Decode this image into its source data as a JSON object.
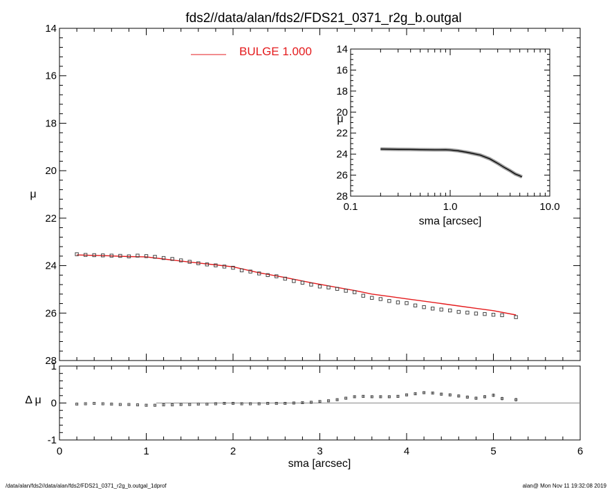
{
  "title": "fds2//data/alan/fds2/FDS21_0371_r2g_b.outgal",
  "footer_left": "/data/alan/fds2//data/alan/fds2/FDS21_0371_r2g_b.outgal_1dprof",
  "footer_right": "alan@  Mon Nov 11 19:32:08 2019",
  "colors": {
    "model": "#e41a1c",
    "data": "#444444",
    "axis": "#000000"
  },
  "chart_data": [
    {
      "type": "scatter",
      "panel": "main",
      "xlabel": "",
      "ylabel": "μ",
      "xlim": [
        0,
        6
      ],
      "ylim": [
        28,
        14
      ],
      "y_inverted": true,
      "y_ticks": [
        "14",
        "16",
        "18",
        "20",
        "22",
        "24",
        "26",
        "28"
      ],
      "legend": {
        "label": "BULGE  1.000",
        "placement": "top-center"
      },
      "data_points": {
        "x": [
          0.2,
          0.3,
          0.4,
          0.5,
          0.6,
          0.7,
          0.8,
          0.9,
          1.0,
          1.1,
          1.2,
          1.3,
          1.4,
          1.5,
          1.6,
          1.7,
          1.8,
          1.9,
          2.0,
          2.1,
          2.2,
          2.3,
          2.4,
          2.5,
          2.6,
          2.7,
          2.8,
          2.9,
          3.0,
          3.1,
          3.2,
          3.3,
          3.4,
          3.5,
          3.6,
          3.7,
          3.8,
          3.9,
          4.0,
          4.1,
          4.2,
          4.3,
          4.4,
          4.5,
          4.6,
          4.7,
          4.8,
          4.9,
          5.0,
          5.1,
          5.26
        ],
        "y": [
          23.52,
          23.55,
          23.56,
          23.57,
          23.58,
          23.59,
          23.61,
          23.58,
          23.6,
          23.63,
          23.68,
          23.72,
          23.78,
          23.84,
          23.9,
          23.95,
          23.99,
          24.04,
          24.09,
          24.2,
          24.25,
          24.33,
          24.4,
          24.45,
          24.55,
          24.65,
          24.72,
          24.8,
          24.88,
          24.92,
          24.98,
          25.06,
          25.12,
          25.27,
          25.36,
          25.41,
          25.49,
          25.55,
          25.58,
          25.68,
          25.75,
          25.81,
          25.85,
          25.89,
          25.95,
          25.98,
          26.02,
          26.04,
          26.07,
          26.09,
          26.17
        ]
      },
      "model_curve": {
        "name": "BULGE  1.000",
        "x": [
          0.2,
          0.5,
          0.8,
          1.0,
          1.2,
          1.5,
          1.8,
          2.0,
          2.3,
          2.6,
          2.9,
          3.2,
          3.4,
          3.6,
          3.8,
          4.0,
          4.2,
          4.4,
          4.6,
          4.8,
          5.0,
          5.26
        ],
        "y": [
          23.55,
          23.58,
          23.62,
          23.63,
          23.72,
          23.85,
          23.97,
          24.05,
          24.3,
          24.5,
          24.72,
          24.92,
          25.05,
          25.2,
          25.3,
          25.4,
          25.5,
          25.6,
          25.7,
          25.8,
          25.9,
          26.08
        ]
      }
    },
    {
      "type": "scatter",
      "panel": "residual",
      "xlabel": "sma [arcsec]",
      "ylabel": "Δ μ",
      "xlim": [
        0,
        6
      ],
      "ylim": [
        -1,
        1
      ],
      "x_ticks": [
        "0",
        "1",
        "2",
        "3",
        "4",
        "5",
        "6"
      ],
      "y_ticks": [
        "-1",
        "0",
        "1"
      ],
      "zero_line": 0,
      "x": [
        0.2,
        0.3,
        0.4,
        0.5,
        0.6,
        0.7,
        0.8,
        0.9,
        1.0,
        1.1,
        1.2,
        1.3,
        1.4,
        1.5,
        1.6,
        1.7,
        1.8,
        1.9,
        2.0,
        2.1,
        2.2,
        2.3,
        2.4,
        2.5,
        2.6,
        2.7,
        2.8,
        2.9,
        3.0,
        3.1,
        3.2,
        3.3,
        3.4,
        3.5,
        3.6,
        3.7,
        3.8,
        3.9,
        4.0,
        4.1,
        4.2,
        4.3,
        4.4,
        4.5,
        4.6,
        4.7,
        4.8,
        4.9,
        5.0,
        5.1,
        5.26
      ],
      "y": [
        -0.03,
        -0.02,
        -0.01,
        -0.02,
        -0.03,
        -0.04,
        -0.04,
        -0.05,
        -0.06,
        -0.06,
        -0.05,
        -0.05,
        -0.04,
        -0.04,
        -0.03,
        -0.03,
        -0.02,
        -0.01,
        -0.01,
        -0.02,
        -0.02,
        -0.02,
        -0.01,
        -0.01,
        -0.01,
        0.0,
        0.01,
        0.02,
        0.04,
        0.06,
        0.09,
        0.13,
        0.17,
        0.18,
        0.17,
        0.17,
        0.17,
        0.18,
        0.22,
        0.25,
        0.28,
        0.27,
        0.24,
        0.22,
        0.19,
        0.16,
        0.13,
        0.17,
        0.21,
        0.12,
        0.09
      ]
    },
    {
      "type": "line",
      "panel": "inset",
      "xlabel": "sma [arcsec]",
      "ylabel": "μ",
      "x_scale": "log",
      "xlim": [
        0.1,
        10.0
      ],
      "ylim": [
        28,
        14
      ],
      "y_inverted": true,
      "x_ticks": [
        "0.1",
        "1.0",
        "10.0"
      ],
      "y_ticks": [
        "14",
        "16",
        "18",
        "20",
        "22",
        "24",
        "26",
        "28"
      ],
      "x": [
        0.2,
        0.3,
        0.4,
        0.5,
        0.7,
        0.9,
        1.0,
        1.2,
        1.5,
        2.0,
        2.5,
        3.0,
        3.5,
        4.0,
        4.5,
        5.0,
        5.26
      ],
      "y": [
        23.52,
        23.55,
        23.56,
        23.57,
        23.59,
        23.58,
        23.6,
        23.68,
        23.84,
        24.09,
        24.45,
        24.88,
        25.27,
        25.58,
        25.89,
        26.07,
        26.17
      ]
    }
  ]
}
